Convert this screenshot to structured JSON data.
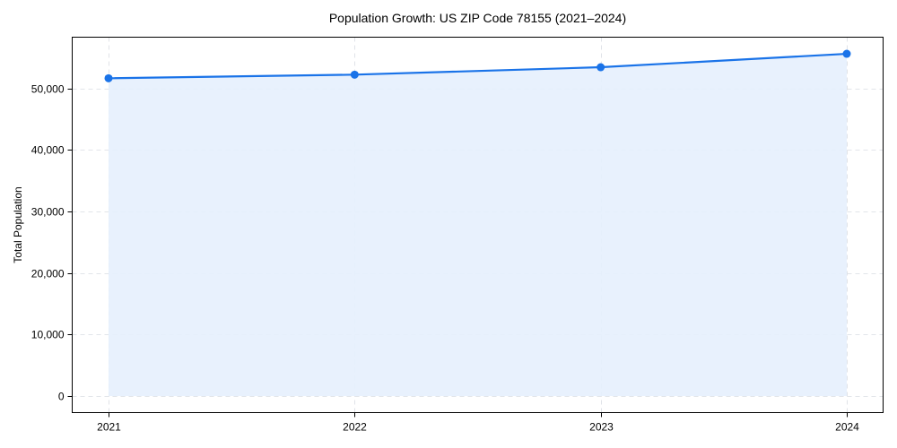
{
  "chart_data": {
    "type": "line",
    "title": "Population Growth: US ZIP Code 78155 (2021–2024)",
    "xlabel": "",
    "ylabel": "Total Population",
    "categories": [
      "2021",
      "2022",
      "2023",
      "2024"
    ],
    "series": [
      {
        "name": "Total Population",
        "values": [
          51630,
          52210,
          53420,
          55600
        ],
        "color": "#1a73e8",
        "fill": "#e6f0fd"
      }
    ],
    "ylim": [
      -2700,
      58300
    ],
    "yticks": [
      0,
      10000,
      20000,
      30000,
      40000,
      50000
    ],
    "ytick_labels": [
      "0",
      "10,000",
      "20,000",
      "30,000",
      "40,000",
      "50,000"
    ],
    "grid": true,
    "legend": null
  }
}
